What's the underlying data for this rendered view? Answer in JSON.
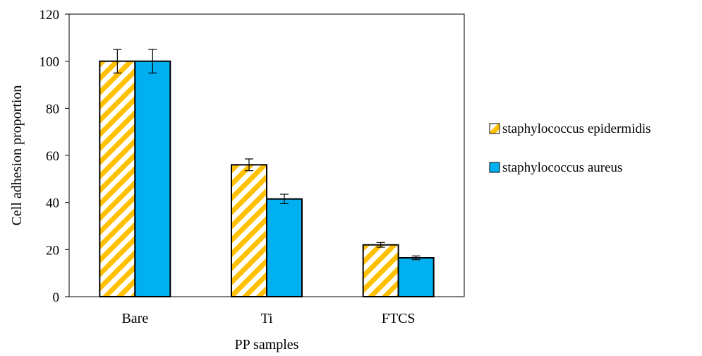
{
  "chart_data": {
    "type": "bar",
    "title": "",
    "xlabel": "PP samples",
    "ylabel": "Cell adhesion proportion",
    "categories": [
      "Bare",
      "Ti",
      "FTCS"
    ],
    "ylim": [
      0,
      120
    ],
    "yticks": [
      0,
      20,
      40,
      60,
      80,
      100,
      120
    ],
    "grid": false,
    "legend_position": "right",
    "series": [
      {
        "name": "staphylococcus epidermidis",
        "values": [
          100,
          56,
          22
        ],
        "errors": [
          5,
          2.5,
          1
        ],
        "color": "#FFC000",
        "pattern": "diagonal-stripes"
      },
      {
        "name": "staphylococcus aureus",
        "values": [
          100,
          41.5,
          16.5
        ],
        "errors": [
          5,
          2,
          0.8
        ],
        "color": "#00B0F0",
        "pattern": "solid"
      }
    ]
  }
}
